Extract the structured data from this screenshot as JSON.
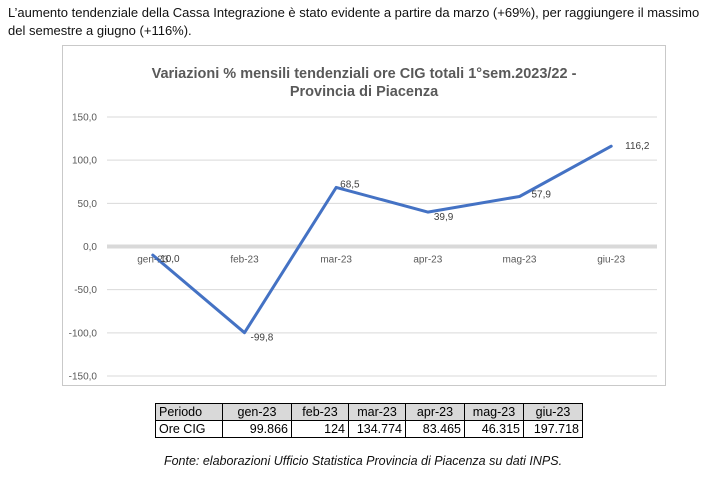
{
  "intro_text": "L’aumento tendenziale della Cassa Integrazione è stato evidente a partire da marzo (+69%), per raggiungere il massimo del semestre a giugno (+116%).",
  "chart_data": {
    "type": "line",
    "title_lines": [
      "Variazioni % mensili tendenziali ore CIG totali 1°sem.2023/22 -",
      "Provincia di Piacenza"
    ],
    "categories": [
      "gen-23",
      "feb-23",
      "mar-23",
      "apr-23",
      "mag-23",
      "giu-23"
    ],
    "series": [
      {
        "values": [
          -10.0,
          -99.8,
          68.5,
          39.9,
          57.9,
          116.2
        ]
      }
    ],
    "data_labels": [
      "-10,0",
      "-99,8",
      "68,5",
      "39,9",
      "57,9",
      "116,2"
    ],
    "yticks": [
      150,
      100,
      50,
      0,
      -50,
      -100,
      -150
    ],
    "ytick_labels": [
      "150,0",
      "100,0",
      "50,0",
      "0,0",
      "-50,0",
      "-100,0",
      "-150,0"
    ],
    "ylim": [
      -150,
      150
    ],
    "grid": true,
    "line_color": "#4472c4",
    "zero_line_color": "#d9d9d9",
    "grid_color": "#d9d9d9"
  },
  "table": {
    "headers": [
      "Periodo",
      "gen-23",
      "feb-23",
      "mar-23",
      "apr-23",
      "mag-23",
      "giu-23"
    ],
    "rows": [
      [
        "Ore CIG",
        "99.866",
        "124",
        "134.774",
        "83.465",
        "46.315",
        "197.718"
      ]
    ]
  },
  "source_text": "Fonte: elaborazioni Ufficio Statistica Provincia di Piacenza su dati INPS."
}
